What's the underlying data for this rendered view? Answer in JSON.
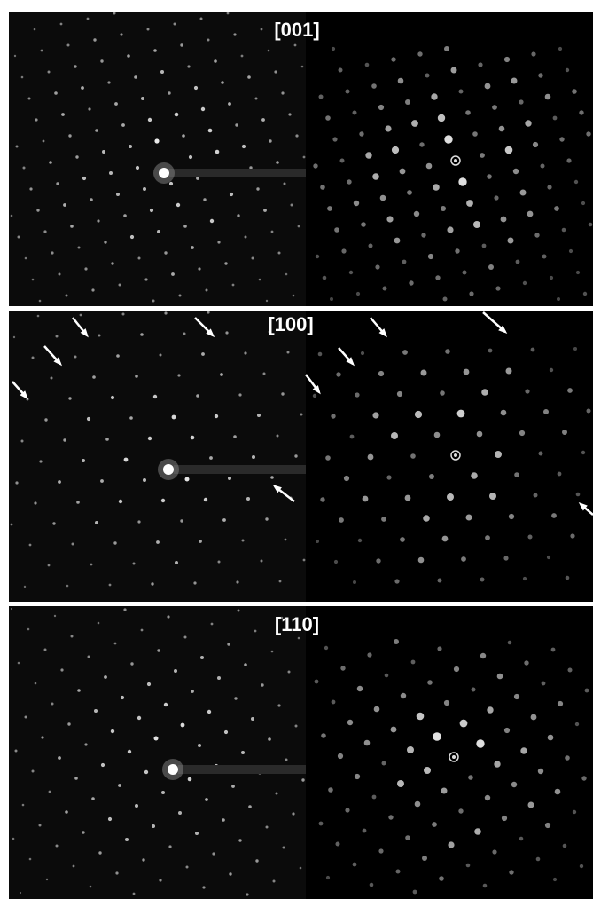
{
  "panels": [
    {
      "label": "[001]"
    },
    {
      "label": "[100]"
    },
    {
      "label": "[110]"
    }
  ]
}
